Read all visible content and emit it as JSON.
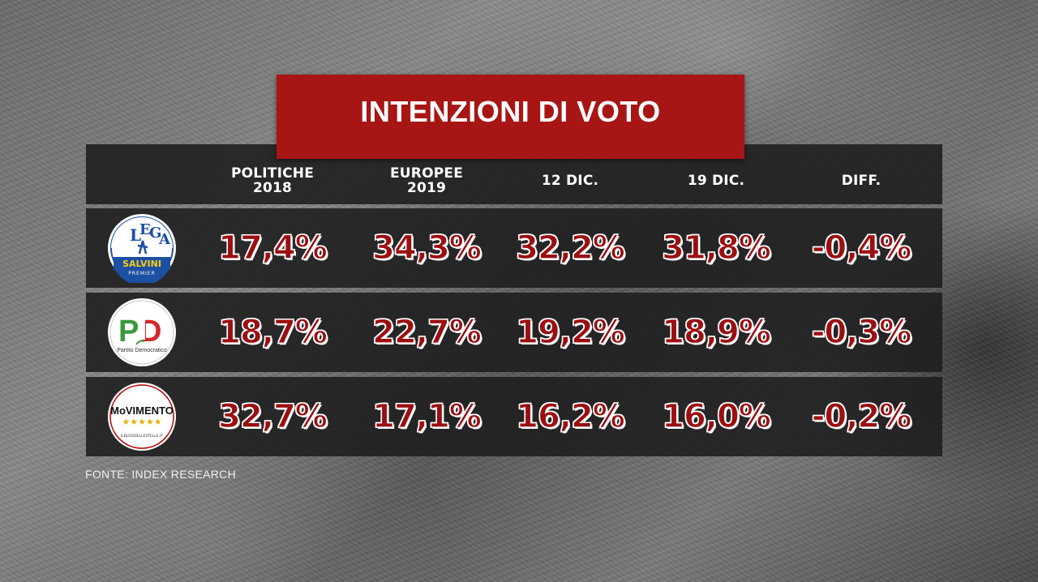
{
  "title": "INTENZIONI DI VOTO",
  "source": "FONTE: INDEX RESEARCH",
  "columns": [
    {
      "line1": "POLITICHE",
      "line2": "2018"
    },
    {
      "line1": "EUROPEE",
      "line2": "2019"
    },
    {
      "line1": "12 DIC.",
      "line2": ""
    },
    {
      "line1": "19 DIC.",
      "line2": ""
    },
    {
      "line1": "DIFF.",
      "line2": ""
    }
  ],
  "rows": [
    {
      "party_logo": "lega-salvini-logo",
      "logo_text": {
        "top": "LEGA",
        "middle": "SALVINI",
        "bottom": "PREMIER"
      },
      "values": [
        "17,4%",
        "34,3%",
        "32,2%",
        "31,8%",
        "-0,4%"
      ]
    },
    {
      "party_logo": "partito-democratico-logo",
      "logo_text": {
        "top": "PD",
        "middle": "Partito Democratico",
        "bottom": ""
      },
      "values": [
        "18,7%",
        "22,7%",
        "19,2%",
        "18,9%",
        "-0,3%"
      ]
    },
    {
      "party_logo": "movimento-5-stelle-logo",
      "logo_text": {
        "top": "MoVIMENTO",
        "middle": "★★★★★",
        "bottom": "ILBLOGDELLESTELLE.IT"
      },
      "values": [
        "32,7%",
        "17,1%",
        "16,2%",
        "16,0%",
        "-0,2%"
      ]
    }
  ],
  "chart_data": {
    "type": "table",
    "title": "INTENZIONI DI VOTO",
    "columns": [
      "POLITICHE 2018",
      "EUROPEE 2019",
      "12 DIC.",
      "19 DIC.",
      "DIFF."
    ],
    "rows": [
      {
        "values": [
          17.4,
          34.3,
          32.2,
          31.8,
          -0.4
        ]
      },
      {
        "values": [
          18.7,
          22.7,
          19.2,
          18.9,
          -0.3
        ]
      },
      {
        "values": [
          32.7,
          17.1,
          16.2,
          16.0,
          -0.2
        ]
      }
    ]
  },
  "colors": {
    "title_bg": "#a81515",
    "value_fill": "#9b0f12",
    "row_bg": "#1c1c1c",
    "lega_blue": "#1d4fa3",
    "lega_yellow": "#f2cf1a",
    "pd_green": "#3a9a3d",
    "pd_red": "#d8262a"
  }
}
